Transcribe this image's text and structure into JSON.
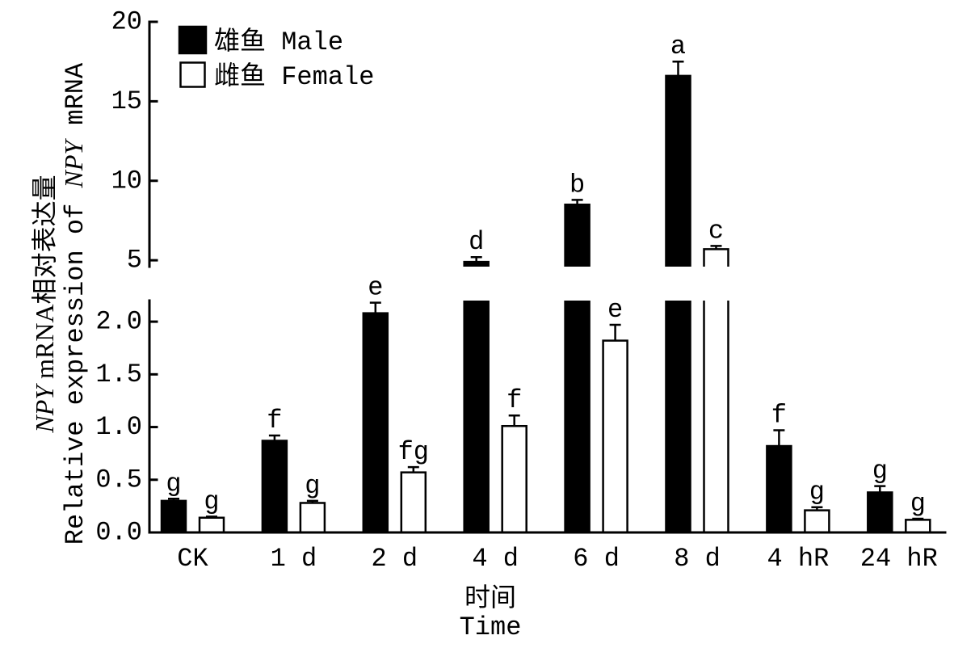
{
  "chart_data": {
    "type": "bar",
    "categories": [
      "CK",
      "1 d",
      "2 d",
      "4 d",
      "6 d",
      "8 d",
      "4 hR",
      "24 hR"
    ],
    "series": [
      {
        "name": "雄鱼 Male",
        "color": "#000000",
        "values": [
          0.3,
          0.87,
          2.08,
          4.9,
          8.5,
          16.6,
          0.82,
          0.38
        ],
        "errors": [
          0.02,
          0.05,
          0.1,
          0.3,
          0.3,
          0.9,
          0.15,
          0.06
        ],
        "labels": [
          "g",
          "f",
          "e",
          "d",
          "b",
          "a",
          "f",
          "g"
        ]
      },
      {
        "name": "雌鱼 Female",
        "color": "#ffffff",
        "values": [
          0.14,
          0.28,
          0.57,
          1.01,
          1.82,
          5.7,
          0.21,
          0.12
        ],
        "errors": [
          0.01,
          0.02,
          0.05,
          0.1,
          0.15,
          0.2,
          0.03,
          0.01
        ],
        "labels": [
          "g",
          "g",
          "fg",
          "f",
          "e",
          "c",
          "g",
          "g"
        ]
      }
    ],
    "xlabel": [
      "时间",
      "Time"
    ],
    "ylabel": {
      "line1": [
        "NPY",
        " mRNA相对表达量"
      ],
      "line2": [
        "Relative expression of ",
        "NPY",
        " mRNA"
      ]
    },
    "y_axis_break": true,
    "y_segments": [
      {
        "ylim": [
          0,
          2.2
        ],
        "ticks": [
          0,
          0.5,
          1.0,
          1.5,
          2.0
        ],
        "tick_labels": [
          "0.0",
          "0.5",
          "1.0",
          "1.5",
          "2.0"
        ]
      },
      {
        "ylim": [
          4.6,
          20
        ],
        "ticks": [
          5,
          10,
          15,
          20
        ],
        "tick_labels": [
          "5",
          "10",
          "15",
          "20"
        ]
      }
    ],
    "grid": false,
    "legend": {
      "placement": "top-left"
    },
    "edge_color": "#000000"
  }
}
